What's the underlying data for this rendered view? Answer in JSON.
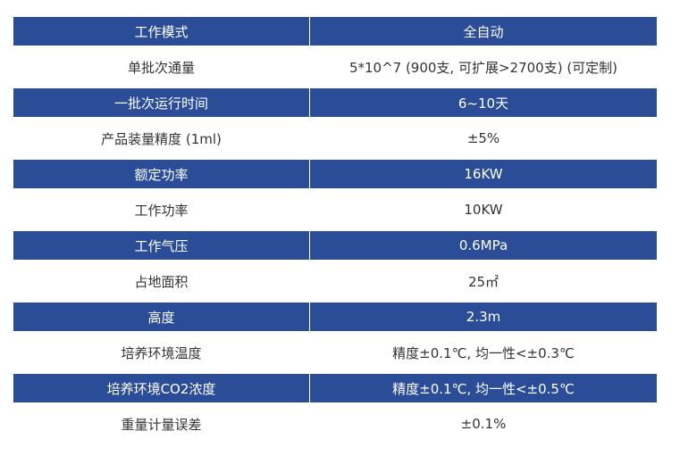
{
  "rows": [
    {
      "label": "工作模式",
      "value": "全自动"
    },
    {
      "label": "单批次通量",
      "value": "5*10^7 (900支, 可扩展>2700支) (可定制)"
    },
    {
      "label": "一批次运行时间",
      "value": "6~10天"
    },
    {
      "label": "产品装量精度 (1ml)",
      "value": "±5%"
    },
    {
      "label": "额定功率",
      "value": "16KW"
    },
    {
      "label": "工作功率",
      "value": "10KW"
    },
    {
      "label": "工作气压",
      "value": "0.6MPa"
    },
    {
      "label": "占地面积",
      "value": "25㎡"
    },
    {
      "label": "高度",
      "value": "2.3m"
    },
    {
      "label": "培养环境温度",
      "value": "精度±0.1℃, 均一性<±0.3℃"
    },
    {
      "label": "培养环境CO2浓度",
      "value": "精度±0.1℃, 均一性<±0.5℃"
    },
    {
      "label": "重量计量误差",
      "value": "±0.1%"
    }
  ],
  "colors": {
    "header_bg": "#2b4d97",
    "header_text": "#ffffff",
    "body_text": "#333333"
  }
}
